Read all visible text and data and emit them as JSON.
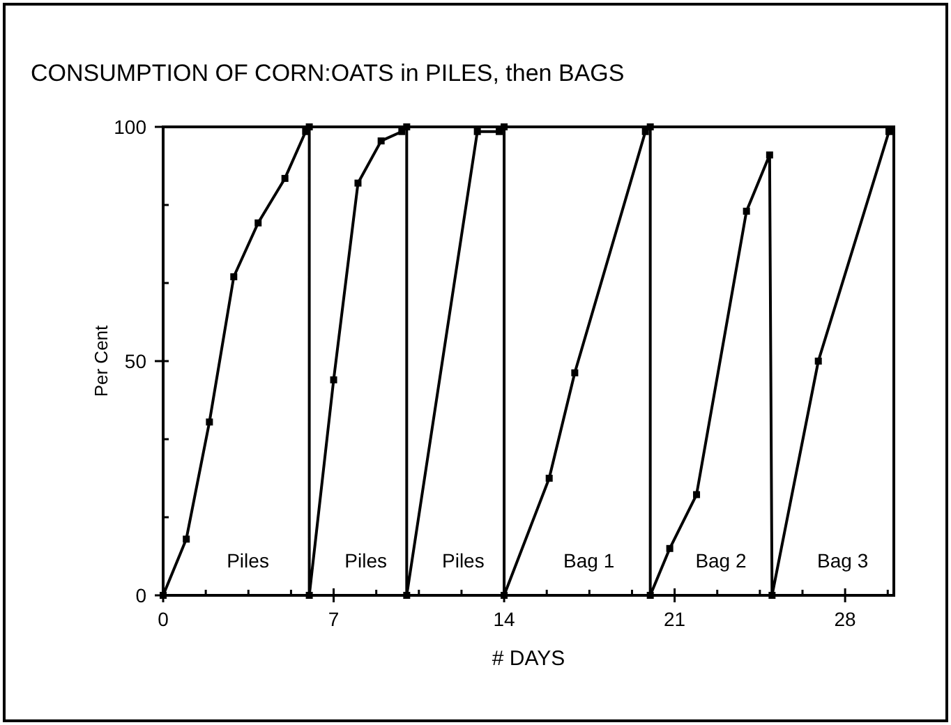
{
  "chart_data": {
    "type": "line",
    "title": "CONSUMPTION OF CORN:OATS in PILES, then BAGS",
    "xlabel": "# DAYS",
    "ylabel": "Per Cent",
    "series": [
      {
        "color": "#000000",
        "x": [
          0,
          0.95,
          1.9,
          2.9,
          3.9,
          5,
          5.85,
          6,
          6,
          7,
          8,
          8.95,
          9.8,
          10,
          10,
          12.9,
          13.8,
          14,
          14,
          15.85,
          16.9,
          19.8,
          20,
          20,
          20.8,
          21.9,
          23.95,
          24.9,
          25,
          26.9,
          29.8
        ],
        "values": [
          0,
          12,
          37,
          68,
          79.5,
          89,
          99,
          100,
          0,
          46,
          88,
          97,
          99,
          100,
          0,
          99,
          99,
          100,
          0,
          25,
          47.5,
          99,
          100,
          0,
          10,
          21.5,
          82,
          94,
          0,
          50,
          99
        ]
      }
    ],
    "xlim": [
      0,
      30
    ],
    "ylim": [
      0,
      100
    ],
    "xticks": [
      0,
      {
        "value": 1.75,
        "label": null
      },
      {
        "value": 3.5,
        "label": null
      },
      {
        "value": 5.25,
        "label": null
      },
      7,
      {
        "value": 8.75,
        "label": null
      },
      {
        "value": 10.5,
        "label": null
      },
      {
        "value": 12.25,
        "label": null
      },
      14,
      {
        "value": 15.75,
        "label": null
      },
      {
        "value": 17.5,
        "label": null
      },
      {
        "value": 19.25,
        "label": null
      },
      21,
      {
        "value": 22.75,
        "label": null
      },
      {
        "value": 24.5,
        "label": null
      },
      {
        "value": 26.25,
        "label": null
      },
      28,
      {
        "value": 29.75,
        "label": null
      }
    ],
    "yticks": [
      0,
      {
        "value": 16.67,
        "label": null
      },
      {
        "value": 33.33,
        "label": null
      },
      50,
      {
        "value": 66.67,
        "label": null
      },
      {
        "value": 83.33,
        "label": null
      },
      100
    ],
    "annotations": [
      "Piles",
      "Piles",
      "Piles",
      "Bag 1",
      "Bag 2",
      "Bag 3"
    ],
    "grid": false,
    "marker": "square",
    "line_style": "solid"
  }
}
